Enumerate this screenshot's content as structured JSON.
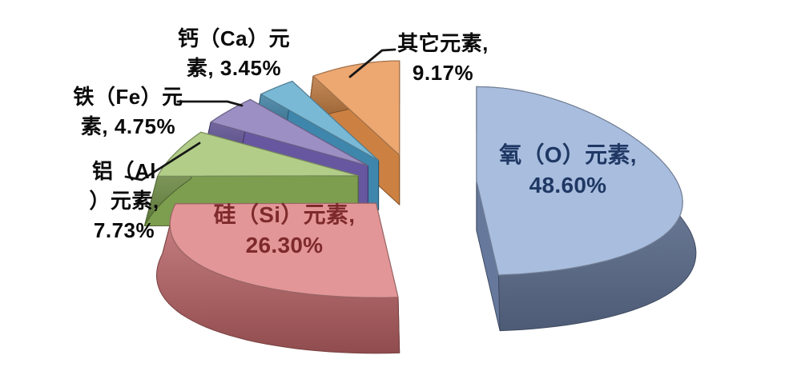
{
  "chart_data": {
    "type": "pie",
    "style": "3d-exploded",
    "title": "",
    "unit": "%",
    "direction": "clockwise",
    "start_angle_deg": 0,
    "legend_position": "none",
    "slices": [
      {
        "id": "oxygen",
        "label": "氧（O）元素",
        "value": 48.6,
        "display": "48.60%",
        "color_top": "#A9BDDE",
        "color_side": "#66799D",
        "label_color": "#1F3864",
        "label_position": "inside"
      },
      {
        "id": "silicon",
        "label": "硅（Si）元素",
        "value": 26.3,
        "display": "26.30%",
        "color_top": "#E39697",
        "color_side": "#C06568",
        "label_color": "#7E2A2C",
        "label_position": "inside"
      },
      {
        "id": "aluminum",
        "label": "铝（Al）元素",
        "value": 7.73,
        "display": "7.73%",
        "color_top": "#B1CD88",
        "color_side": "#7C9E4E",
        "label_color": "#0B0B0B",
        "label_position": "outside"
      },
      {
        "id": "iron",
        "label": "铁（Fe）元素",
        "value": 4.75,
        "display": "4.75%",
        "color_top": "#9C8FC4",
        "color_side": "#6757A0",
        "label_color": "#0B0B0B",
        "label_position": "outside"
      },
      {
        "id": "calcium",
        "label": "钙（Ca）元素",
        "value": 3.45,
        "display": "3.45%",
        "color_top": "#79B9D6",
        "color_side": "#3F86AC",
        "label_color": "#0B0B0B",
        "label_position": "outside"
      },
      {
        "id": "other",
        "label": "其它元素",
        "value": 9.17,
        "display": "9.17%",
        "color_top": "#EDA770",
        "color_side": "#CC8142",
        "label_color": "#0B0B0B",
        "label_position": "outside"
      }
    ]
  },
  "labels": {
    "oxygen": {
      "line1": "氧（O）元素,",
      "line2": "48.60%"
    },
    "silicon": {
      "line1": "硅（Si）元素,",
      "line2": "26.30%"
    },
    "calcium": {
      "line1": "钙（Ca）元",
      "line2": "素, 3.45%"
    },
    "iron": {
      "line1": "铁（Fe）元",
      "line2": "素, 4.75%"
    },
    "aluminum": {
      "line1": "铝（Al",
      "line2": "）元素,",
      "line3": "7.73%"
    },
    "other": {
      "line1": "其它元素,",
      "line2": "9.17%"
    }
  }
}
